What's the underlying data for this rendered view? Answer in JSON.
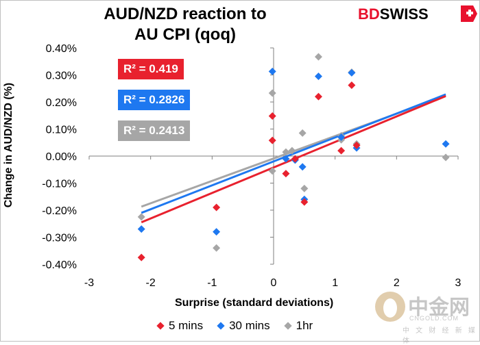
{
  "title_line1": "AUD/NZD reaction to",
  "title_line2": "AU CPI (qoq)",
  "logo": {
    "part1": "BD",
    "part2": "SWISS"
  },
  "watermark": {
    "main": "中金网",
    "sub": "CNGOLD.COM",
    "cn": "中 文 财 经 新 媒 体"
  },
  "chart_data": {
    "type": "scatter",
    "title": "AUD/NZD reaction to AU CPI (qoq)",
    "xlabel": "Surprise (standard deviations)",
    "ylabel": "Change in AUD/NZD (%)",
    "xlim": [
      -3,
      3
    ],
    "ylim": [
      -0.4,
      0.4
    ],
    "xticks": [
      -3,
      -2,
      -1,
      0,
      1,
      2,
      3
    ],
    "xtick_labels": [
      "-3",
      "-2",
      "-1",
      "0",
      "1",
      "2",
      "3"
    ],
    "yticks": [
      -0.4,
      -0.3,
      -0.2,
      -0.1,
      0.0,
      0.1,
      0.2,
      0.3,
      0.4
    ],
    "ytick_labels": [
      "-0.40%",
      "-0.30%",
      "-0.20%",
      "-0.10%",
      "0.00%",
      "0.10%",
      "0.20%",
      "0.30%",
      "0.40%"
    ],
    "series": [
      {
        "name": "5 mins",
        "color": "#e8212e",
        "r2_label": "R² = 0.419",
        "trend": {
          "x": [
            -2.15,
            2.8
          ],
          "y": [
            -0.245,
            0.222
          ]
        },
        "points": [
          [
            -2.15,
            -0.375
          ],
          [
            -0.93,
            -0.19
          ],
          [
            -0.02,
            0.148
          ],
          [
            -0.02,
            0.058
          ],
          [
            0.2,
            -0.065
          ],
          [
            0.35,
            -0.01
          ],
          [
            0.5,
            -0.17
          ],
          [
            0.73,
            0.22
          ],
          [
            1.1,
            0.02
          ],
          [
            1.27,
            0.262
          ],
          [
            1.35,
            0.04
          ]
        ]
      },
      {
        "name": "30 mins",
        "color": "#1e78f0",
        "r2_label": "R² = 0.2826",
        "trend": {
          "x": [
            -2.15,
            2.8
          ],
          "y": [
            -0.21,
            0.228
          ]
        },
        "points": [
          [
            -2.15,
            -0.27
          ],
          [
            -0.93,
            -0.28
          ],
          [
            -0.02,
            0.313
          ],
          [
            0.2,
            -0.01
          ],
          [
            0.35,
            -0.015
          ],
          [
            0.47,
            -0.04
          ],
          [
            0.5,
            -0.16
          ],
          [
            0.73,
            0.295
          ],
          [
            1.1,
            0.07
          ],
          [
            1.27,
            0.308
          ],
          [
            1.35,
            0.03
          ],
          [
            2.8,
            0.045
          ]
        ]
      },
      {
        "name": "1hr",
        "color": "#a6a6a6",
        "r2_label": "R² = 0.2413",
        "trend": {
          "x": [
            -2.15,
            2.8
          ],
          "y": [
            -0.187,
            0.223
          ]
        },
        "points": [
          [
            -2.15,
            -0.225
          ],
          [
            -0.93,
            -0.34
          ],
          [
            -0.02,
            0.233
          ],
          [
            -0.02,
            -0.055
          ],
          [
            0.2,
            0.015
          ],
          [
            0.3,
            0.02
          ],
          [
            0.47,
            0.085
          ],
          [
            0.5,
            -0.12
          ],
          [
            0.73,
            0.367
          ],
          [
            1.1,
            0.06
          ],
          [
            1.1,
            0.075
          ],
          [
            1.27,
            0.31
          ],
          [
            1.35,
            0.045
          ],
          [
            2.8,
            -0.005
          ]
        ]
      }
    ]
  }
}
